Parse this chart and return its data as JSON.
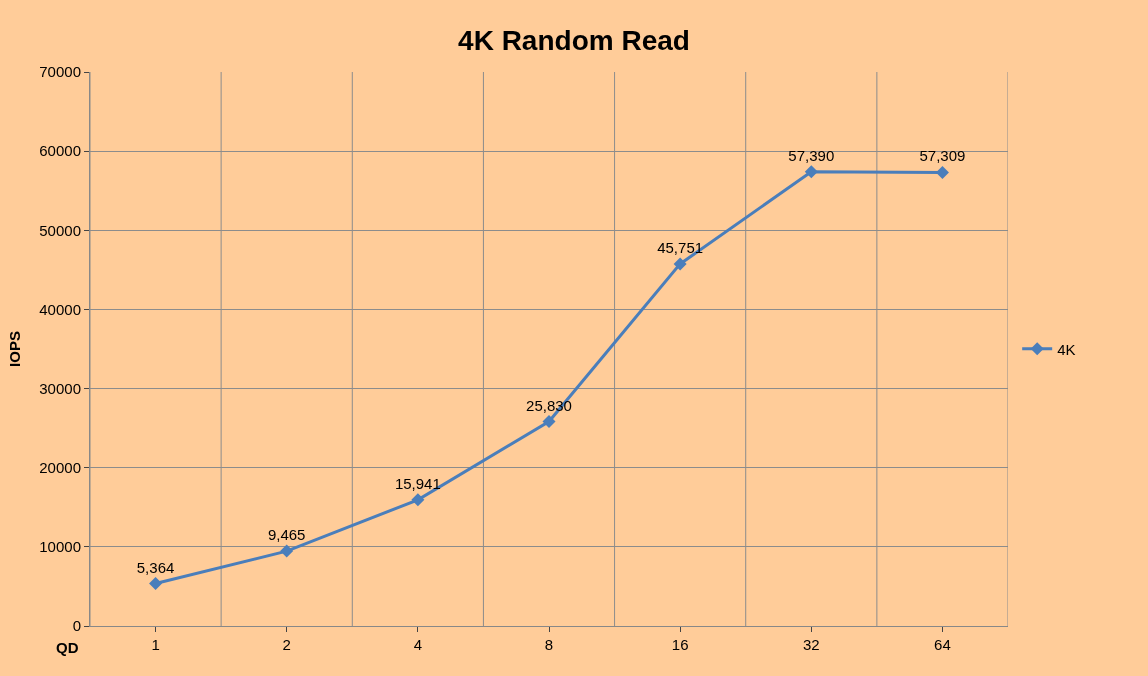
{
  "chart_data": {
    "type": "line",
    "title": "4K Random Read",
    "xlabel": "QD",
    "ylabel": "IOPS",
    "categories": [
      "1",
      "2",
      "4",
      "8",
      "16",
      "32",
      "64"
    ],
    "series": [
      {
        "name": "4K",
        "color": "#4a7ebb",
        "values": [
          5364,
          9465,
          15941,
          25830,
          45751,
          57390,
          57309
        ],
        "value_labels": [
          "5,364",
          "9,465",
          "15,941",
          "25,830",
          "45,751",
          "57,390",
          "57,309"
        ]
      }
    ],
    "ylim": [
      0,
      70000
    ],
    "yticks": [
      0,
      10000,
      20000,
      30000,
      40000,
      50000,
      60000,
      70000
    ],
    "grid": true,
    "legend": "right",
    "marker": "diamond",
    "line_style": "solid"
  }
}
